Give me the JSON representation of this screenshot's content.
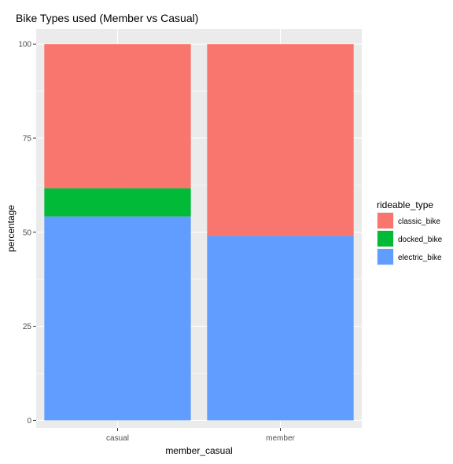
{
  "chart_data": {
    "type": "bar",
    "stacked": true,
    "title": "Bike Types used (Member vs Casual)",
    "xlabel": "member_casual",
    "ylabel": "percentage",
    "ylim": [
      -2,
      104
    ],
    "yticks": [
      0,
      25,
      50,
      75,
      100
    ],
    "categories": [
      "casual",
      "member"
    ],
    "series": [
      {
        "name": "electric_bike",
        "color": "#619CFF",
        "values": [
          54.2,
          49.0
        ]
      },
      {
        "name": "docked_bike",
        "color": "#00BA38",
        "values": [
          7.5,
          0
        ]
      },
      {
        "name": "classic_bike",
        "color": "#F8766D",
        "values": [
          38.3,
          51.0
        ]
      }
    ],
    "legend": {
      "title": "rideable_type",
      "position": "right",
      "order": [
        "classic_bike",
        "docked_bike",
        "electric_bike"
      ]
    },
    "panel_background": "#EBEBEB",
    "grid": true
  }
}
